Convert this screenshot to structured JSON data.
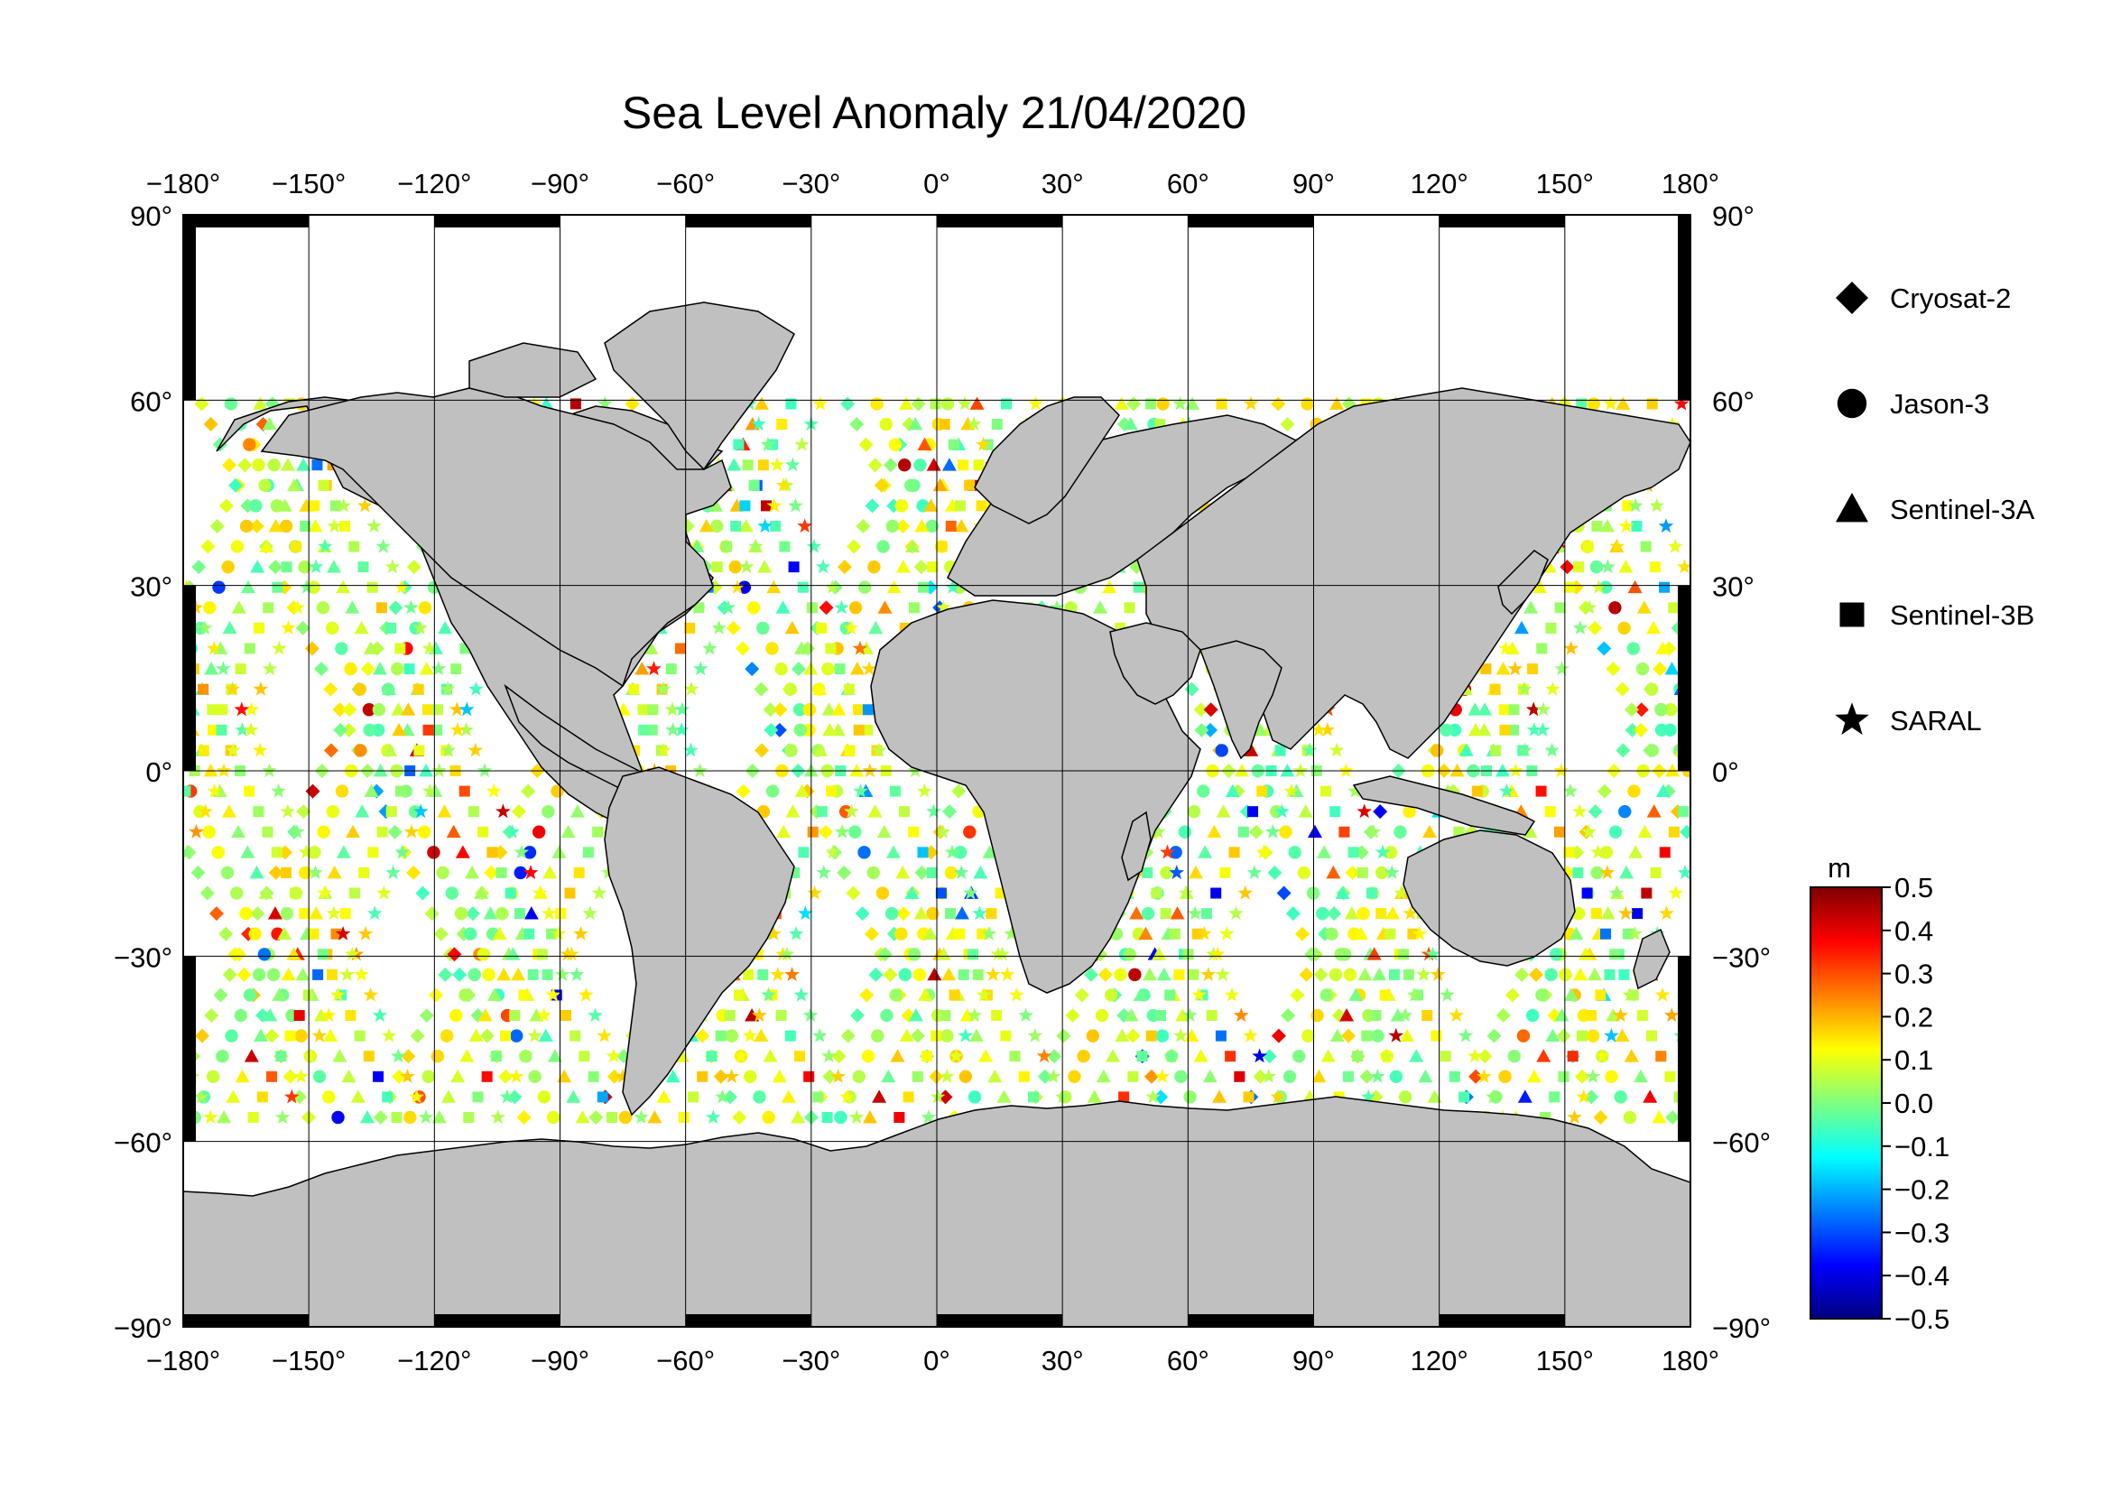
{
  "title": "Sea Level Anomaly 21/04/2020",
  "x_ticks": [
    "-180",
    "-150",
    "-120",
    "-90",
    "-60",
    "-30",
    "0",
    "30",
    "60",
    "90",
    "120",
    "150",
    "180"
  ],
  "y_ticks": [
    "90",
    "60",
    "30",
    "0",
    "-30",
    "-60",
    "-90"
  ],
  "degree_symbol": "°",
  "legend": [
    {
      "symbol": "diamond",
      "label": "Cryosat-2"
    },
    {
      "symbol": "circle",
      "label": "Jason-3"
    },
    {
      "symbol": "triangle",
      "label": "Sentinel-3A"
    },
    {
      "symbol": "square",
      "label": "Sentinel-3B"
    },
    {
      "symbol": "star",
      "label": "SARAL"
    }
  ],
  "colorbar": {
    "unit": "m",
    "min": -0.5,
    "max": 0.5,
    "tick_labels": [
      "0.5",
      "0.4",
      "0.3",
      "0.2",
      "0.1",
      "0.0",
      "−0.1",
      "−0.2",
      "−0.3",
      "−0.4",
      "−0.5"
    ],
    "colors": [
      "#00007f",
      "#0000ff",
      "#007fff",
      "#00ffff",
      "#7fff7f",
      "#ffff00",
      "#ff7f00",
      "#ff0000",
      "#7f0000"
    ]
  },
  "colors": {
    "land": "#c0c0c0",
    "ocean": "#ffffff",
    "grid": "#000000",
    "frame": "#000000"
  },
  "chart_data": {
    "type": "scatter",
    "title": "Sea Level Anomaly 21/04/2020",
    "xlim": [
      -180,
      180
    ],
    "ylim": [
      -90,
      90
    ],
    "grid": true,
    "legend_position": "right",
    "series": [
      {
        "name": "Cryosat-2",
        "marker": "diamond"
      },
      {
        "name": "Jason-3",
        "marker": "circle"
      },
      {
        "name": "Sentinel-3A",
        "marker": "triangle"
      },
      {
        "name": "Sentinel-3B",
        "marker": "square"
      },
      {
        "name": "SARAL",
        "marker": "star"
      }
    ],
    "value_range": [
      -0.5,
      0.5
    ],
    "unit": "m"
  }
}
